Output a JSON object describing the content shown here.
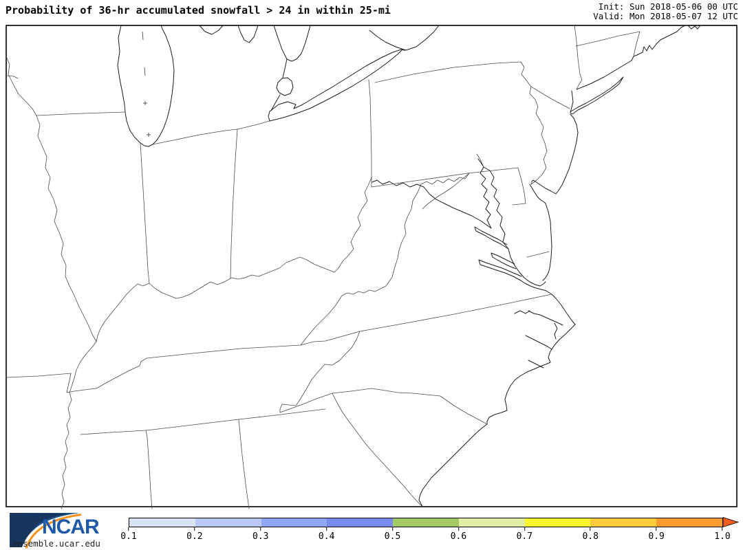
{
  "header": {
    "title": "Probability of 36-hr accumulated snowfall > 24 in within 25-mi",
    "init_line": "Init: Sun 2018-05-06 00 UTC",
    "valid_line": "Valid: Mon 2018-05-07 12 UTC"
  },
  "colorbar": {
    "tick_labels": [
      "0.1",
      "0.2",
      "0.3",
      "0.4",
      "0.5",
      "0.6",
      "0.7",
      "0.8",
      "0.9",
      "1.0"
    ],
    "segment_colors": [
      "#d9e3f3",
      "#bac9f4",
      "#92a7f1",
      "#7b8cee",
      "#a0c964",
      "#e0eda4",
      "#f9f42e",
      "#fbc93c",
      "#f89c2d"
    ],
    "arrow_color": "#ef5e1e"
  },
  "branding": {
    "wordmark": "NCAR",
    "site": "ensemble.ucar.edu"
  }
}
